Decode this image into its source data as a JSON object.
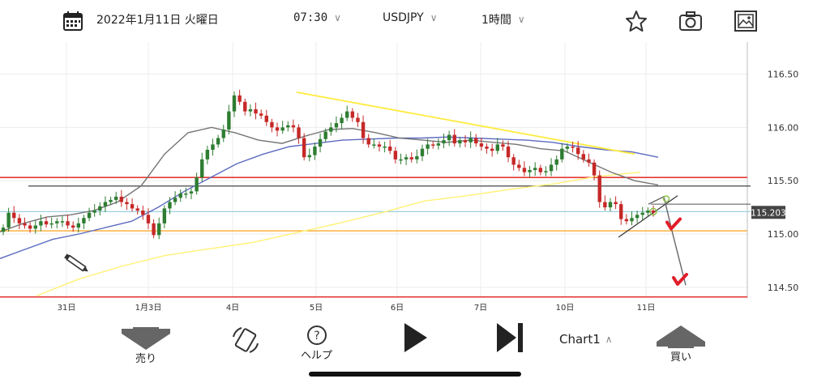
{
  "header": {
    "date": "2022年1月11日 火曜日",
    "time": "07:30",
    "symbol": "USDJPY",
    "timeframe": "1時間"
  },
  "toolbar": {
    "sell_label": "売り",
    "help_label": "ヘルプ",
    "chart_label": "Chart1",
    "buy_label": "買い"
  },
  "colors": {
    "bull": "#2e7d32",
    "bear": "#c62828",
    "resistance": "#e53935",
    "support_orange": "#ff9800",
    "trendline": "#ffeb3b",
    "ma_short": "#757575",
    "ma_mid": "#5c6bc0",
    "ma_long": "#fff176"
  },
  "chart_data": {
    "type": "candlestick",
    "symbol": "USDJPY",
    "timeframe": "1時間",
    "ylim": [
      114.4,
      116.8
    ],
    "y_ticks": [
      "116.50",
      "116.00",
      "115.50",
      "115.00",
      "114.50"
    ],
    "x_ticks": [
      "31日",
      "1月3日",
      "4日",
      "5日",
      "6日",
      "7日",
      "10日",
      "11日"
    ],
    "current_price": "115.203",
    "horizontal_lines": [
      {
        "price": 115.53,
        "color": "resistance"
      },
      {
        "price": 115.45,
        "color": "black"
      },
      {
        "price": 115.21,
        "color": "lightblue"
      },
      {
        "price": 115.03,
        "color": "support_orange"
      },
      {
        "price": 114.41,
        "color": "resistance"
      }
    ],
    "closes": [
      115.06,
      115.2,
      115.15,
      115.1,
      115.08,
      115.05,
      115.08,
      115.12,
      115.09,
      115.1,
      115.12,
      115.12,
      115.08,
      115.06,
      115.1,
      115.15,
      115.2,
      115.22,
      115.26,
      115.3,
      115.32,
      115.35,
      115.3,
      115.28,
      115.24,
      115.22,
      115.18,
      115.1,
      114.99,
      115.1,
      115.24,
      115.3,
      115.34,
      115.38,
      115.38,
      115.4,
      115.53,
      115.7,
      115.79,
      115.84,
      115.9,
      115.98,
      116.15,
      116.3,
      116.24,
      116.15,
      116.17,
      116.13,
      116.11,
      116.05,
      116.0,
      115.97,
      116.0,
      116.02,
      116.0,
      115.9,
      115.72,
      115.74,
      115.82,
      115.89,
      115.96,
      116.0,
      116.04,
      116.09,
      116.15,
      116.09,
      116.05,
      115.9,
      115.84,
      115.84,
      115.82,
      115.82,
      115.78,
      115.7,
      115.7,
      115.72,
      115.7,
      115.73,
      115.8,
      115.84,
      115.83,
      115.85,
      115.88,
      115.93,
      115.85,
      115.88,
      115.86,
      115.9,
      115.85,
      115.82,
      115.8,
      115.78,
      115.84,
      115.82,
      115.72,
      115.65,
      115.62,
      115.58,
      115.6,
      115.62,
      115.58,
      115.59,
      115.65,
      115.7,
      115.8,
      115.82,
      115.81,
      115.75,
      115.7,
      115.67,
      115.55,
      115.3,
      115.25,
      115.3,
      115.28,
      115.14,
      115.12,
      115.15,
      115.18,
      115.2,
      115.22,
      115.2
    ],
    "ma_short": [
      115.02,
      115.1,
      115.16,
      115.18,
      115.22,
      115.3,
      115.45,
      115.75,
      115.95,
      116.0,
      115.95,
      115.88,
      115.85,
      115.92,
      115.98,
      115.99,
      115.95,
      115.9,
      115.88,
      115.86,
      115.88,
      115.86,
      115.84,
      115.8,
      115.78,
      115.68,
      115.58,
      115.5,
      115.46
    ],
    "ma_mid": [
      114.77,
      114.86,
      114.95,
      115.0,
      115.06,
      115.12,
      115.25,
      115.4,
      115.53,
      115.66,
      115.75,
      115.82,
      115.85,
      115.88,
      115.89,
      115.9,
      115.9,
      115.91,
      115.9,
      115.89,
      115.88,
      115.86,
      115.82,
      115.79,
      115.77,
      115.72
    ],
    "ma_long": [
      114.42,
      114.58,
      114.7,
      114.8,
      114.86,
      114.92,
      115.01,
      115.1,
      115.2,
      115.31,
      115.36,
      115.42,
      115.47,
      115.54,
      115.58
    ],
    "trendlines": [
      {
        "from": [
          116.33
        ],
        "to": [
          115.75
        ]
      },
      {
        "from": [
          114.97
        ],
        "to": [
          115.36
        ]
      }
    ],
    "projection": [
      115.28,
      115.35,
      115.0,
      114.52
    ]
  }
}
